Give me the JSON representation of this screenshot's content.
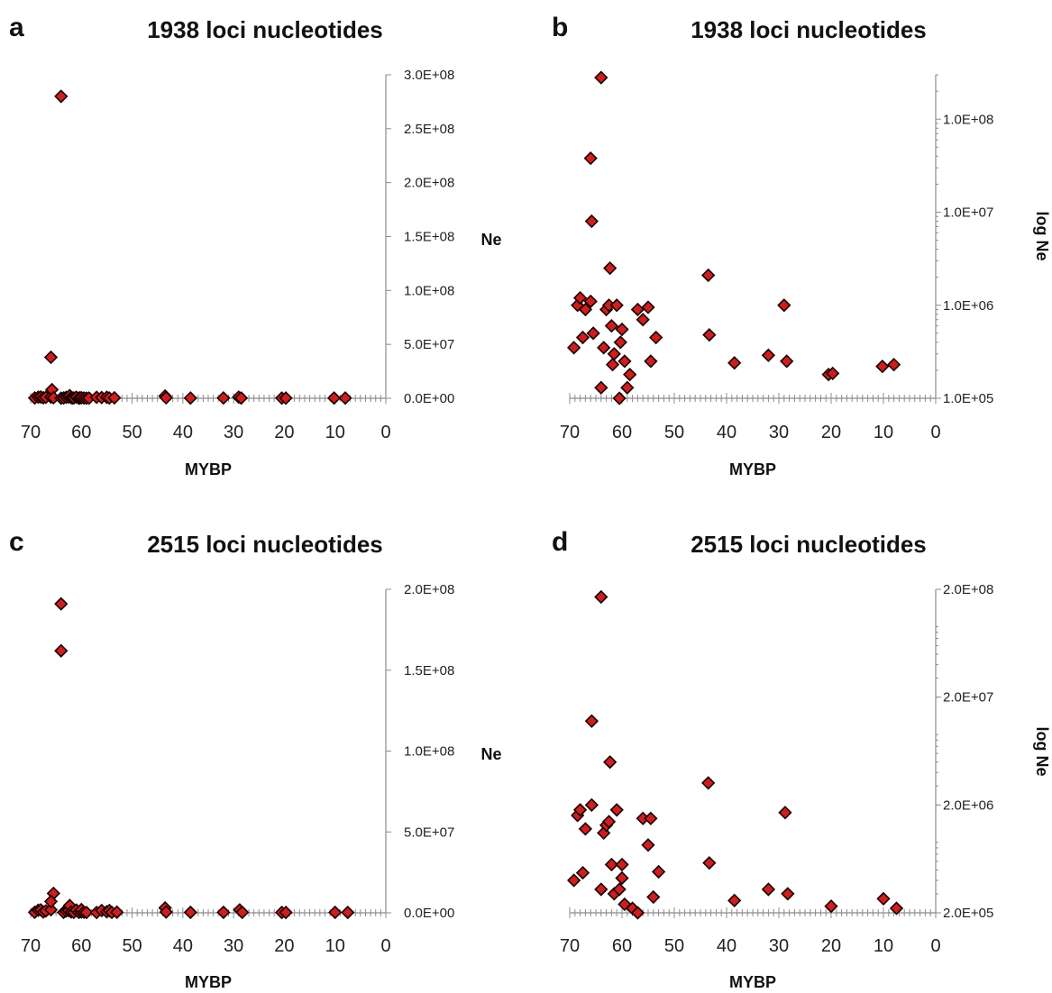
{
  "colors": {
    "marker_fill": "#cc1f1f",
    "marker_stroke": "#1a0000",
    "axis": "#8c8c8c"
  },
  "marker_shape": "diamond",
  "chart_data": [
    {
      "panel": "a",
      "type": "scatter",
      "title": "1938 loci nucleotides",
      "xlabel": "MYBP",
      "ylabel": "Ne",
      "x_reversed": true,
      "xlim": [
        70,
        0
      ],
      "x_ticks": [
        "70",
        "60",
        "50",
        "40",
        "30",
        "20",
        "10",
        "0"
      ],
      "y_scale": "linear",
      "ylim": [
        0,
        300000000
      ],
      "y_ticks": [
        "0.0E+00",
        "5.0E+07",
        "1.0E+08",
        "1.5E+08",
        "2.0E+08",
        "2.5E+08",
        "3.0E+08"
      ],
      "y_axis_side": "right",
      "points": [
        {
          "x": 69.2,
          "y": 350000
        },
        {
          "x": 68.5,
          "y": 1000000
        },
        {
          "x": 68.0,
          "y": 1200000
        },
        {
          "x": 67.5,
          "y": 450000
        },
        {
          "x": 67.0,
          "y": 900000
        },
        {
          "x": 66.0,
          "y": 1100000
        },
        {
          "x": 66.0,
          "y": 38000000
        },
        {
          "x": 65.8,
          "y": 8000000
        },
        {
          "x": 65.5,
          "y": 500000
        },
        {
          "x": 64.0,
          "y": 280000000
        },
        {
          "x": 64.0,
          "y": 130000
        },
        {
          "x": 63.5,
          "y": 350000
        },
        {
          "x": 63.0,
          "y": 900000
        },
        {
          "x": 62.5,
          "y": 1000000
        },
        {
          "x": 62.3,
          "y": 2500000
        },
        {
          "x": 62.0,
          "y": 600000
        },
        {
          "x": 61.8,
          "y": 230000
        },
        {
          "x": 61.5,
          "y": 300000
        },
        {
          "x": 61.0,
          "y": 1000000
        },
        {
          "x": 60.5,
          "y": 90000
        },
        {
          "x": 60.3,
          "y": 400000
        },
        {
          "x": 60.0,
          "y": 550000
        },
        {
          "x": 59.5,
          "y": 250000
        },
        {
          "x": 59.0,
          "y": 130000
        },
        {
          "x": 58.5,
          "y": 180000
        },
        {
          "x": 57.0,
          "y": 900000
        },
        {
          "x": 56.0,
          "y": 700000
        },
        {
          "x": 55.0,
          "y": 950000
        },
        {
          "x": 54.5,
          "y": 250000
        },
        {
          "x": 53.5,
          "y": 450000
        },
        {
          "x": 43.5,
          "y": 2100000
        },
        {
          "x": 43.3,
          "y": 480000
        },
        {
          "x": 38.5,
          "y": 240000
        },
        {
          "x": 32.0,
          "y": 290000
        },
        {
          "x": 29.0,
          "y": 1000000
        },
        {
          "x": 28.5,
          "y": 250000
        },
        {
          "x": 20.5,
          "y": 180000
        },
        {
          "x": 19.7,
          "y": 185000
        },
        {
          "x": 10.2,
          "y": 220000
        },
        {
          "x": 8.0,
          "y": 230000
        }
      ]
    },
    {
      "panel": "b",
      "type": "scatter",
      "title": "1938 loci nucleotides",
      "xlabel": "MYBP",
      "ylabel": "log Ne",
      "x_reversed": true,
      "xlim": [
        70,
        0
      ],
      "x_ticks": [
        "70",
        "60",
        "50",
        "40",
        "30",
        "20",
        "10",
        "0"
      ],
      "y_scale": "log",
      "ylim": [
        100000,
        300000000
      ],
      "y_ticks": [
        "1.0E+05",
        "1.0E+06",
        "1.0E+07",
        "1.0E+08"
      ],
      "y_tick_values": [
        100000,
        1000000,
        10000000,
        100000000
      ],
      "y_axis_side": "right",
      "points": [
        {
          "x": 69.2,
          "y": 350000
        },
        {
          "x": 68.5,
          "y": 1000000
        },
        {
          "x": 68.0,
          "y": 1200000
        },
        {
          "x": 67.5,
          "y": 450000
        },
        {
          "x": 67.0,
          "y": 900000
        },
        {
          "x": 66.0,
          "y": 1100000
        },
        {
          "x": 66.0,
          "y": 38000000
        },
        {
          "x": 65.8,
          "y": 8000000
        },
        {
          "x": 65.5,
          "y": 500000
        },
        {
          "x": 64.0,
          "y": 280000000
        },
        {
          "x": 64.0,
          "y": 130000
        },
        {
          "x": 63.5,
          "y": 350000
        },
        {
          "x": 63.0,
          "y": 900000
        },
        {
          "x": 62.5,
          "y": 1000000
        },
        {
          "x": 62.3,
          "y": 2500000
        },
        {
          "x": 62.0,
          "y": 600000
        },
        {
          "x": 61.8,
          "y": 230000
        },
        {
          "x": 61.5,
          "y": 300000
        },
        {
          "x": 61.0,
          "y": 1000000
        },
        {
          "x": 60.5,
          "y": 90000
        },
        {
          "x": 60.3,
          "y": 400000
        },
        {
          "x": 60.0,
          "y": 550000
        },
        {
          "x": 59.5,
          "y": 250000
        },
        {
          "x": 59.0,
          "y": 130000
        },
        {
          "x": 58.5,
          "y": 180000
        },
        {
          "x": 57.0,
          "y": 900000
        },
        {
          "x": 56.0,
          "y": 700000
        },
        {
          "x": 55.0,
          "y": 950000
        },
        {
          "x": 54.5,
          "y": 250000
        },
        {
          "x": 53.5,
          "y": 450000
        },
        {
          "x": 43.5,
          "y": 2100000
        },
        {
          "x": 43.3,
          "y": 480000
        },
        {
          "x": 38.5,
          "y": 240000
        },
        {
          "x": 32.0,
          "y": 290000
        },
        {
          "x": 29.0,
          "y": 1000000
        },
        {
          "x": 28.5,
          "y": 250000
        },
        {
          "x": 20.5,
          "y": 180000
        },
        {
          "x": 19.7,
          "y": 185000
        },
        {
          "x": 10.2,
          "y": 220000
        },
        {
          "x": 8.0,
          "y": 230000
        }
      ]
    },
    {
      "panel": "c",
      "type": "scatter",
      "title": "2515 loci nucleotides",
      "xlabel": "MYBP",
      "ylabel": "Ne",
      "x_reversed": true,
      "xlim": [
        70,
        0
      ],
      "x_ticks": [
        "70",
        "60",
        "50",
        "40",
        "30",
        "20",
        "10",
        "0"
      ],
      "y_scale": "linear",
      "ylim": [
        0,
        200000000
      ],
      "y_ticks": [
        "0.0E+00",
        "5.0E+07",
        "1.0E+08",
        "1.5E+08",
        "2.0E+08"
      ],
      "y_axis_side": "right",
      "points": [
        {
          "x": 69.2,
          "y": 320000
        },
        {
          "x": 68.5,
          "y": 1600000
        },
        {
          "x": 68.0,
          "y": 1800000
        },
        {
          "x": 67.5,
          "y": 500000
        },
        {
          "x": 67.0,
          "y": 1200000
        },
        {
          "x": 66.0,
          "y": 1900000
        },
        {
          "x": 65.5,
          "y": 12000000
        },
        {
          "x": 66.0,
          "y": 7000000
        },
        {
          "x": 63.5,
          "y": 280000
        },
        {
          "x": 64.0,
          "y": 162000000
        },
        {
          "x": 64.0,
          "y": 191000000
        },
        {
          "x": 63.0,
          "y": 1100000
        },
        {
          "x": 62.5,
          "y": 1300000
        },
        {
          "x": 62.3,
          "y": 4500000
        },
        {
          "x": 62.0,
          "y": 480000
        },
        {
          "x": 61.5,
          "y": 250000
        },
        {
          "x": 61.0,
          "y": 1700000
        },
        {
          "x": 60.5,
          "y": 260000
        },
        {
          "x": 60.0,
          "y": 480000
        },
        {
          "x": 60.0,
          "y": 2000000
        },
        {
          "x": 59.5,
          "y": 330000
        },
        {
          "x": 59.0,
          "y": 220000
        },
        {
          "x": 57.0,
          "y": 200000
        },
        {
          "x": 56.0,
          "y": 1400000
        },
        {
          "x": 55.0,
          "y": 650000
        },
        {
          "x": 54.5,
          "y": 1400000
        },
        {
          "x": 54.0,
          "y": 250000
        },
        {
          "x": 53.0,
          "y": 380000
        },
        {
          "x": 43.5,
          "y": 3000000
        },
        {
          "x": 43.3,
          "y": 500000
        },
        {
          "x": 38.5,
          "y": 280000
        },
        {
          "x": 32.0,
          "y": 300000
        },
        {
          "x": 28.8,
          "y": 1800000
        },
        {
          "x": 28.3,
          "y": 300000
        },
        {
          "x": 20.5,
          "y": 220000
        },
        {
          "x": 19.7,
          "y": 230000
        },
        {
          "x": 10.0,
          "y": 270000
        },
        {
          "x": 7.5,
          "y": 210000
        }
      ]
    },
    {
      "panel": "d",
      "type": "scatter",
      "title": "2515 loci nucleotides",
      "xlabel": "MYBP",
      "ylabel": "log Ne",
      "x_reversed": true,
      "xlim": [
        70,
        0
      ],
      "x_ticks": [
        "70",
        "60",
        "50",
        "40",
        "30",
        "20",
        "10",
        "0"
      ],
      "y_scale": "log",
      "ylim": [
        200000,
        200000000
      ],
      "y_ticks": [
        "2.0E+05",
        "2.0E+06",
        "2.0E+07",
        "2.0E+08"
      ],
      "y_tick_values": [
        200000,
        2000000,
        20000000,
        200000000
      ],
      "y_axis_side": "right",
      "points": [
        {
          "x": 69.2,
          "y": 400000
        },
        {
          "x": 68.5,
          "y": 1600000
        },
        {
          "x": 68.0,
          "y": 1800000
        },
        {
          "x": 67.5,
          "y": 470000
        },
        {
          "x": 67.0,
          "y": 1200000
        },
        {
          "x": 65.8,
          "y": 2000000
        },
        {
          "x": 65.8,
          "y": 12000000
        },
        {
          "x": 64.0,
          "y": 170000000
        },
        {
          "x": 64.0,
          "y": 330000
        },
        {
          "x": 63.5,
          "y": 1100000
        },
        {
          "x": 63.0,
          "y": 1300000
        },
        {
          "x": 62.5,
          "y": 1400000
        },
        {
          "x": 62.3,
          "y": 5000000
        },
        {
          "x": 62.0,
          "y": 560000
        },
        {
          "x": 61.5,
          "y": 300000
        },
        {
          "x": 61.0,
          "y": 1800000
        },
        {
          "x": 60.5,
          "y": 330000
        },
        {
          "x": 60.0,
          "y": 420000
        },
        {
          "x": 60.0,
          "y": 560000
        },
        {
          "x": 59.5,
          "y": 240000
        },
        {
          "x": 58.0,
          "y": 220000
        },
        {
          "x": 57.0,
          "y": 200000
        },
        {
          "x": 56.0,
          "y": 1500000
        },
        {
          "x": 55.0,
          "y": 850000
        },
        {
          "x": 54.5,
          "y": 1500000
        },
        {
          "x": 54.0,
          "y": 280000
        },
        {
          "x": 53.0,
          "y": 480000
        },
        {
          "x": 43.5,
          "y": 3200000
        },
        {
          "x": 43.3,
          "y": 580000
        },
        {
          "x": 38.5,
          "y": 260000
        },
        {
          "x": 32.0,
          "y": 330000
        },
        {
          "x": 28.8,
          "y": 1700000
        },
        {
          "x": 28.3,
          "y": 300000
        },
        {
          "x": 20.0,
          "y": 230000
        },
        {
          "x": 10.0,
          "y": 270000
        },
        {
          "x": 7.5,
          "y": 220000
        }
      ]
    }
  ]
}
